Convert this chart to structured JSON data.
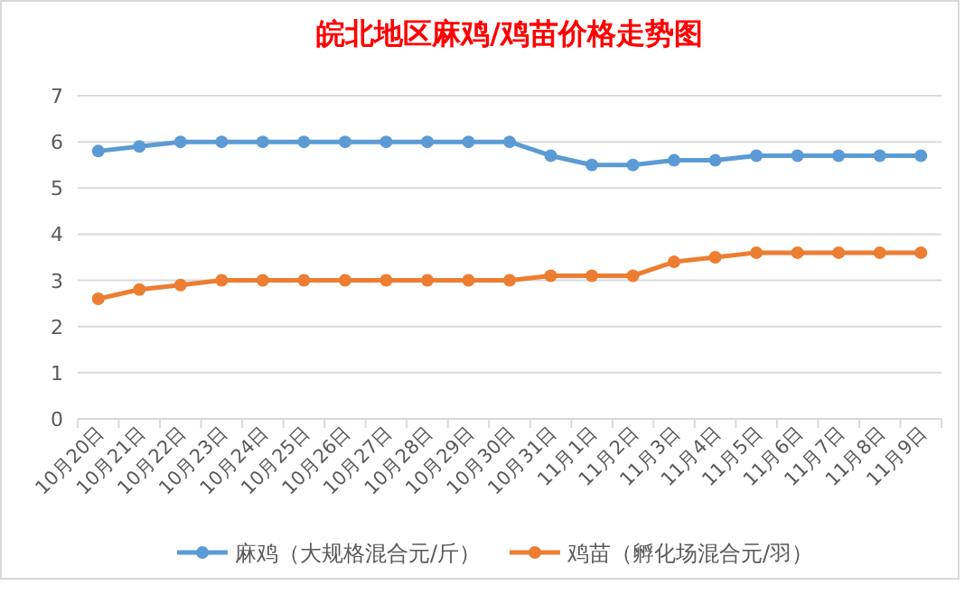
{
  "chart_data": {
    "type": "line",
    "title": "皖北地区麻鸡/鸡苗价格走势图",
    "categories": [
      "10月20日",
      "10月21日",
      "10月22日",
      "10月23日",
      "10月24日",
      "10月25日",
      "10月26日",
      "10月27日",
      "10月28日",
      "10月29日",
      "10月30日",
      "10月31日",
      "11月1日",
      "11月2日",
      "11月3日",
      "11月4日",
      "11月5日",
      "11月6日",
      "11月7日",
      "11月8日",
      "11月9日"
    ],
    "series": [
      {
        "name": "麻鸡（大规格混合元/斤）",
        "color": "#5b9bd5",
        "values": [
          5.8,
          5.9,
          6.0,
          6.0,
          6.0,
          6.0,
          6.0,
          6.0,
          6.0,
          6.0,
          6.0,
          5.7,
          5.5,
          5.5,
          5.6,
          5.6,
          5.7,
          5.7,
          5.7,
          5.7,
          5.7
        ]
      },
      {
        "name": "鸡苗（孵化场混合元/羽）",
        "color": "#ed7d31",
        "values": [
          2.6,
          2.8,
          2.9,
          3.0,
          3.0,
          3.0,
          3.0,
          3.0,
          3.0,
          3.0,
          3.0,
          3.1,
          3.1,
          3.1,
          3.4,
          3.5,
          3.6,
          3.6,
          3.6,
          3.6,
          3.6
        ]
      }
    ],
    "ylim": [
      0,
      7
    ],
    "yticks": [
      0,
      1,
      2,
      3,
      4,
      5,
      6,
      7
    ],
    "grid": "y",
    "legend": "bottom",
    "marker": "circle",
    "line_style": "solid"
  }
}
